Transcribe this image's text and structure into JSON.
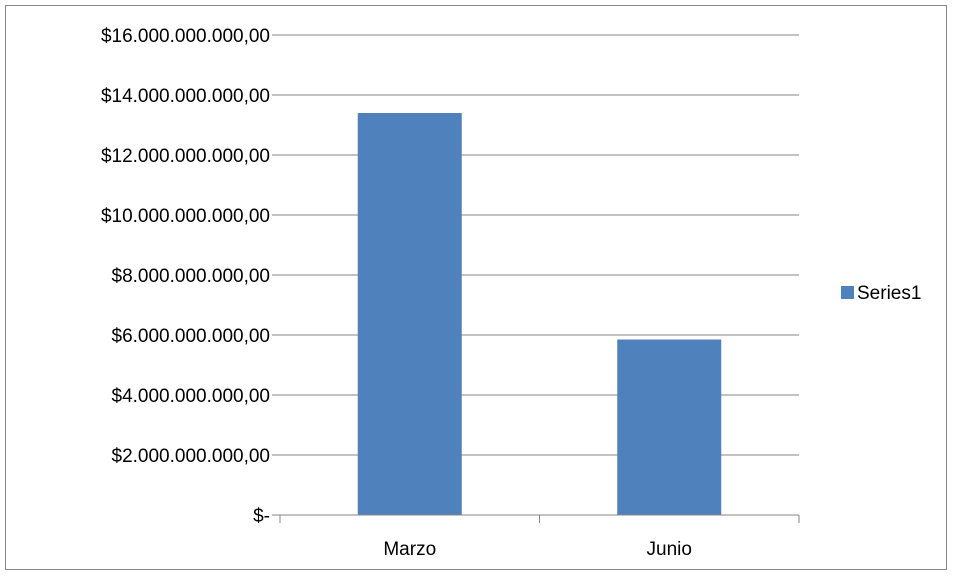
{
  "chart_data": {
    "type": "bar",
    "categories": [
      "Marzo",
      "Junio"
    ],
    "series": [
      {
        "name": "Series1",
        "values": [
          13400000000,
          5850000000
        ],
        "color": "#4f81bd"
      }
    ],
    "ylim": [
      0,
      16000000000
    ],
    "yticks": [
      0,
      2000000000,
      4000000000,
      6000000000,
      8000000000,
      10000000000,
      12000000000,
      14000000000,
      16000000000
    ],
    "ytick_labels": [
      "$-",
      "$2.000.000.000,00",
      "$4.000.000.000,00",
      "$6.000.000.000,00",
      "$8.000.000.000,00",
      "$10.000.000.000,00",
      "$12.000.000.000,00",
      "$14.000.000.000,00",
      "$16.000.000.000,00"
    ],
    "grid": true,
    "legend_position": "right",
    "gridline_color": "#868686",
    "axis_color": "#868686"
  }
}
